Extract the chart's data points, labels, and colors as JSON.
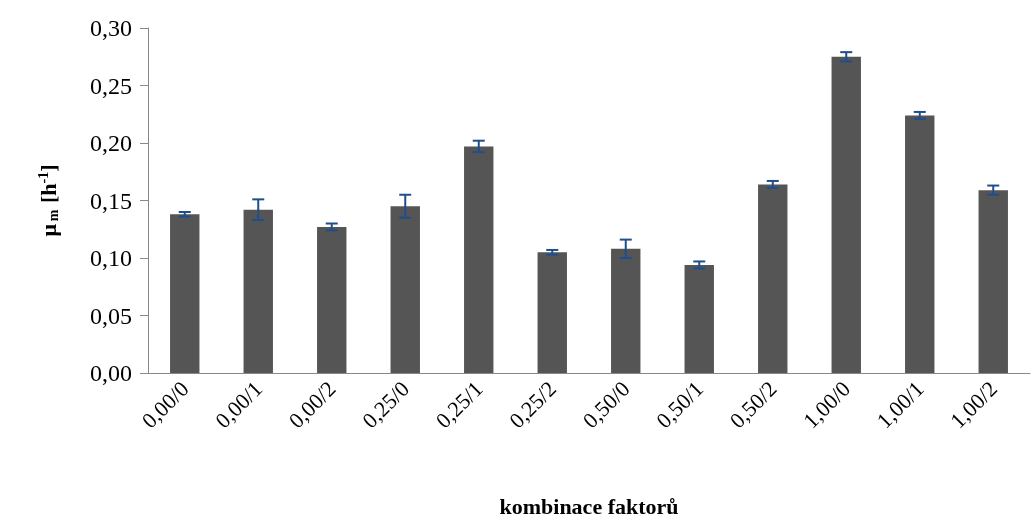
{
  "chart_data": {
    "type": "bar",
    "xlabel": "kombinace faktorů",
    "ylabel": "μ$_{m}$ [h$^{-1}$]",
    "categories": [
      "0,00/0",
      "0,00/1",
      "0,00/2",
      "0,25/0",
      "0,25/1",
      "0,25/2",
      "0,50/0",
      "0,50/1",
      "0,50/2",
      "1,00/0",
      "1,00/1",
      "1,00/2"
    ],
    "series": [
      {
        "color": "#555555",
        "values": [
          0.138,
          0.142,
          0.127,
          0.145,
          0.197,
          0.105,
          0.108,
          0.094,
          0.164,
          0.275,
          0.224,
          0.159
        ],
        "errors": [
          0.002,
          0.009,
          0.003,
          0.01,
          0.005,
          0.002,
          0.008,
          0.003,
          0.003,
          0.004,
          0.003,
          0.004
        ]
      }
    ],
    "ylim": [
      0,
      0.3
    ],
    "yticks": [
      {
        "value": 0,
        "label": "0,00"
      },
      {
        "value": 0.05,
        "label": "0,05"
      },
      {
        "value": 0.1,
        "label": "0,10"
      },
      {
        "value": 0.15,
        "label": "0,15"
      },
      {
        "value": 0.2,
        "label": "0,20"
      },
      {
        "value": 0.25,
        "label": "0,25"
      },
      {
        "value": 0.3,
        "label": "0,30"
      }
    ],
    "grid": false
  }
}
